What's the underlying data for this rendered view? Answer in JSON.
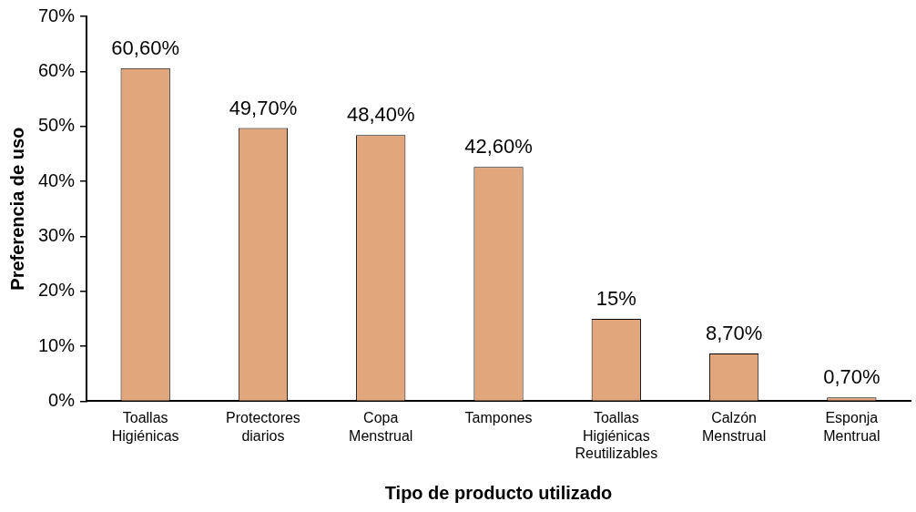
{
  "chart_data": {
    "type": "bar",
    "xlabel": "Tipo de producto utilizado",
    "ylabel": "Preferencia de uso",
    "categories": [
      "Toallas Higiénicas",
      "Protectores diarios",
      "Copa Menstrual",
      "Tampones",
      "Toallas Higiénicas Reutilizables",
      "Calzón Menstrual",
      "Esponja Mentrual"
    ],
    "values": [
      60.6,
      49.7,
      48.4,
      42.6,
      15,
      8.7,
      0.7
    ],
    "value_labels": [
      "60,60%",
      "49,70%",
      "48,40%",
      "42,60%",
      "15%",
      "8,70%",
      "0,70%"
    ],
    "color": "#e2a67c",
    "ylim": [
      0,
      70
    ],
    "yticks": [
      {
        "value": 0,
        "label": "0%"
      },
      {
        "value": 10,
        "label": "10%"
      },
      {
        "value": 20,
        "label": "20%"
      },
      {
        "value": 30,
        "label": "30%"
      },
      {
        "value": 40,
        "label": "40%"
      },
      {
        "value": 50,
        "label": "50%"
      },
      {
        "value": 60,
        "label": "60%"
      },
      {
        "value": 70,
        "label": "70%"
      }
    ],
    "grid": false,
    "legend": false
  }
}
